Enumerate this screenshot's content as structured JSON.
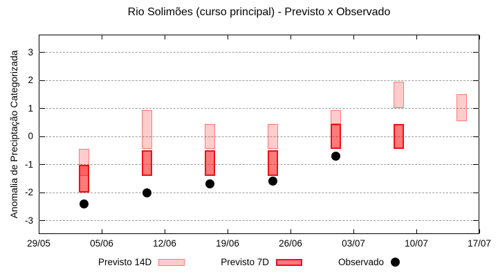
{
  "page": {
    "title": "Rio Solimões (curso principal) - Previsto x Observado"
  },
  "chart_data": {
    "type": "candlestick",
    "title": "Rio Solimões (curso principal) - Previsto x Observado",
    "xlabel": "",
    "ylabel": "Anomalia de Preciptação Categorizada",
    "ylim": [
      -3.5,
      3.6
    ],
    "grid": "horizontal-dashed",
    "grid_color": "#9a9a9a",
    "legend_position": "bottom-outside",
    "yticks": [
      3,
      2,
      1,
      0,
      -1,
      -2,
      -3
    ],
    "xticks": [
      {
        "label": "29/05",
        "day": 0
      },
      {
        "label": "05/06",
        "day": 7
      },
      {
        "label": "12/06",
        "day": 14
      },
      {
        "label": "19/06",
        "day": 21
      },
      {
        "label": "26/06",
        "day": 28
      },
      {
        "label": "03/07",
        "day": 35
      },
      {
        "label": "10/07",
        "day": 42
      },
      {
        "label": "17/07",
        "day": 49
      }
    ],
    "series": [
      {
        "id": "previsto-14d",
        "name": "Previsto 14D",
        "type": "range-bar",
        "fill": "rgba(255,0,0,0.20)",
        "border": "rgba(255,0,0,0.42)",
        "border_width": 1.5,
        "points": [
          {
            "date": "03/06",
            "day": 5,
            "low": -1.4,
            "high": -0.45
          },
          {
            "date": "10/06",
            "day": 12,
            "low": -0.45,
            "high": 0.95
          },
          {
            "date": "17/06",
            "day": 19,
            "low": -0.45,
            "high": 0.45
          },
          {
            "date": "24/06",
            "day": 26,
            "low": -0.45,
            "high": 0.45
          },
          {
            "date": "01/07",
            "day": 33,
            "low": 0.45,
            "high": 0.95
          },
          {
            "date": "08/07",
            "day": 40,
            "low": 1.0,
            "high": 1.95
          },
          {
            "date": "15/07",
            "day": 47,
            "low": 0.55,
            "high": 1.5
          }
        ]
      },
      {
        "id": "previsto-7d",
        "name": "Previsto 7D",
        "type": "range-bar",
        "fill": "rgba(255,0,0,0.52)",
        "border": "#ee1111",
        "border_width": 2,
        "points": [
          {
            "date": "03/06",
            "day": 5,
            "low": -2.0,
            "high": -1.0
          },
          {
            "date": "10/06",
            "day": 12,
            "low": -1.4,
            "high": -0.5
          },
          {
            "date": "17/06",
            "day": 19,
            "low": -1.4,
            "high": -0.5
          },
          {
            "date": "24/06",
            "day": 26,
            "low": -1.4,
            "high": -0.5
          },
          {
            "date": "01/07",
            "day": 33,
            "low": -0.45,
            "high": 0.45
          },
          {
            "date": "08/07",
            "day": 40,
            "low": -0.45,
            "high": 0.45
          }
        ]
      },
      {
        "id": "observado",
        "name": "Observado",
        "type": "dot",
        "fill": "#000000",
        "points": [
          {
            "date": "03/06",
            "day": 5,
            "value": -2.4
          },
          {
            "date": "10/06",
            "day": 12,
            "value": -2.0
          },
          {
            "date": "17/06",
            "day": 19,
            "value": -1.7
          },
          {
            "date": "24/06",
            "day": 26,
            "value": -1.6
          },
          {
            "date": "01/07",
            "day": 33,
            "value": -0.7
          }
        ]
      }
    ]
  }
}
